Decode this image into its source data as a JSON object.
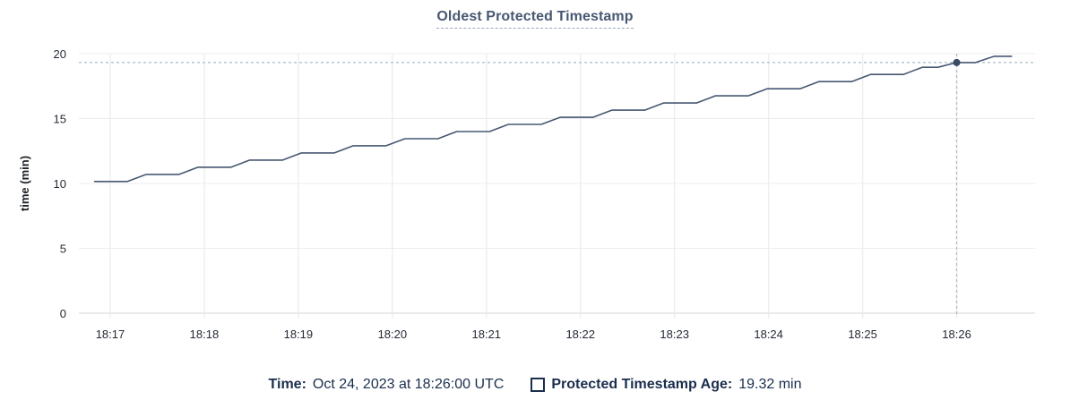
{
  "title": "Oldest Protected Timestamp",
  "tooltip_legend": {
    "time_label": "Time:",
    "time_value": "Oct 24, 2023 at 18:26:00 UTC",
    "series_label": "Protected Timestamp Age:",
    "series_value": "19.32 min"
  },
  "colors": {
    "series_line": "#475872",
    "title_text": "#475872",
    "axis_text": "#242a35",
    "legend_text": "#1b2e4d",
    "gridline": "#ececec",
    "crosshair": "#a9bcca",
    "hover_dot": "#394a63",
    "background": "#ffffff"
  },
  "chart_data": {
    "type": "line",
    "title": "Oldest Protected Timestamp",
    "xlabel": "",
    "ylabel": "time (min)",
    "grid": true,
    "legend_position": "bottom",
    "ylim": [
      0,
      20
    ],
    "y_ticks": [
      0,
      5,
      10,
      15,
      20
    ],
    "x_ticks": [
      "18:17",
      "18:18",
      "18:19",
      "18:20",
      "18:21",
      "18:22",
      "18:23",
      "18:24",
      "18:25",
      "18:26"
    ],
    "x_tick_seconds": [
      60,
      120,
      180,
      240,
      300,
      360,
      420,
      480,
      540,
      600
    ],
    "x_domain_seconds": [
      40,
      650
    ],
    "x_domain_note": "seconds after 18:16:00 UTC, Oct 24 2023",
    "series": [
      {
        "name": "Protected Timestamp Age",
        "unit": "min",
        "points": [
          [
            50,
            10.15
          ],
          [
            71,
            10.15
          ],
          [
            83,
            10.7
          ],
          [
            104,
            10.7
          ],
          [
            116,
            11.25
          ],
          [
            137,
            11.25
          ],
          [
            149,
            11.8
          ],
          [
            170,
            11.8
          ],
          [
            182,
            12.35
          ],
          [
            203,
            12.35
          ],
          [
            215,
            12.9
          ],
          [
            236,
            12.9
          ],
          [
            248,
            13.45
          ],
          [
            269,
            13.45
          ],
          [
            281,
            14.0
          ],
          [
            302,
            14.0
          ],
          [
            314,
            14.55
          ],
          [
            335,
            14.55
          ],
          [
            347,
            15.1
          ],
          [
            368,
            15.1
          ],
          [
            380,
            15.65
          ],
          [
            401,
            15.65
          ],
          [
            413,
            16.2
          ],
          [
            434,
            16.2
          ],
          [
            446,
            16.75
          ],
          [
            467,
            16.75
          ],
          [
            479,
            17.3
          ],
          [
            500,
            17.3
          ],
          [
            512,
            17.85
          ],
          [
            533,
            17.85
          ],
          [
            545,
            18.4
          ],
          [
            566,
            18.4
          ],
          [
            578,
            18.95
          ],
          [
            588,
            18.95
          ],
          [
            600,
            19.32
          ],
          [
            612,
            19.32
          ],
          [
            624,
            19.8
          ],
          [
            635,
            19.8
          ]
        ]
      }
    ],
    "crosshair": {
      "time": "18:26:00",
      "x_seconds": 600,
      "value": 19.32
    }
  }
}
